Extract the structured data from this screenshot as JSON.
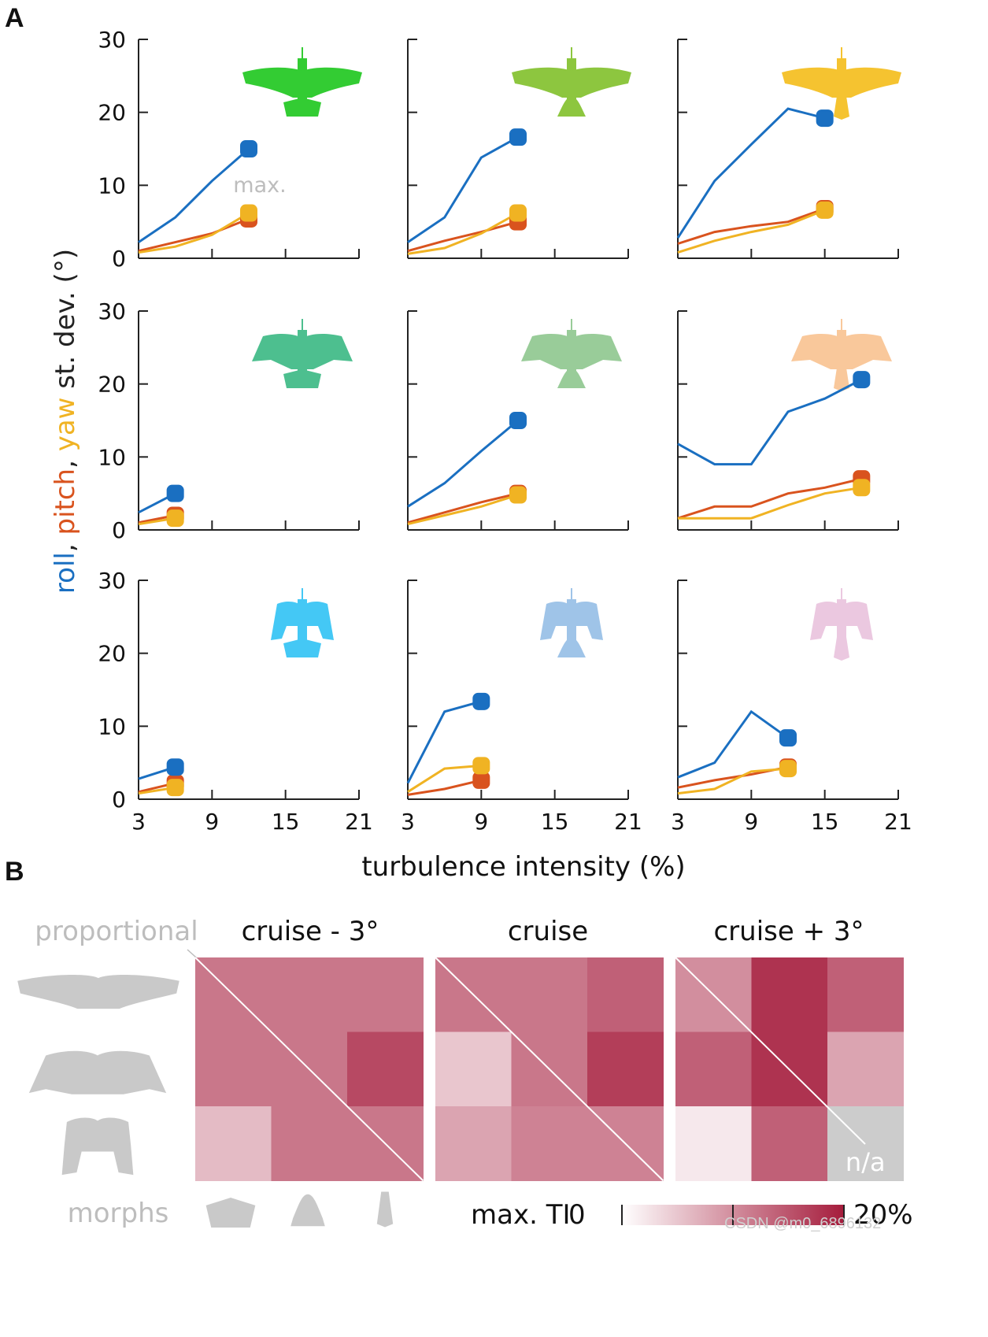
{
  "panel_letters": {
    "a": "A",
    "b": "B"
  },
  "panel_a": {
    "xlabel": "turbulence intensity (%)",
    "ylabel_parts": [
      {
        "text": "roll",
        "color": "#1a6fc1"
      },
      {
        "text": ", ",
        "color": "#222222"
      },
      {
        "text": "pitch",
        "color": "#d9531e"
      },
      {
        "text": ", ",
        "color": "#222222"
      },
      {
        "text": "yaw",
        "color": "#f0b323"
      },
      {
        "text": "  st. dev. (°)",
        "color": "#222222"
      }
    ],
    "annotation_max": "max.",
    "x_ticks": [
      "3",
      "9",
      "15",
      "21"
    ],
    "y_ticks": [
      "0",
      "10",
      "20",
      "30"
    ]
  },
  "panel_b": {
    "conditions": [
      "cruise - 3°",
      "cruise",
      "cruise + 3°"
    ],
    "proportional_label": "proportional",
    "morphs_label": "morphs",
    "na_label": "n/a",
    "colorbar": {
      "title": "max. TI",
      "min_label": "0",
      "max_label": "20%"
    }
  },
  "watermark": "CSDN @m0_6896132",
  "chart_data": [
    {
      "type": "line",
      "xlim": [
        3,
        21
      ],
      "ylim": [
        0,
        30
      ],
      "bird_color": "#33cc33",
      "series": [
        {
          "name": "roll",
          "color": "#1a6fc1",
          "x": [
            3,
            6,
            9,
            12
          ],
          "y": [
            2.2,
            5.6,
            10.6,
            15.0
          ]
        },
        {
          "name": "pitch",
          "color": "#d9531e",
          "x": [
            3,
            6,
            9,
            12
          ],
          "y": [
            1.0,
            2.2,
            3.4,
            5.4
          ]
        },
        {
          "name": "yaw",
          "color": "#f0b323",
          "x": [
            3,
            6,
            9,
            12
          ],
          "y": [
            0.8,
            1.6,
            3.2,
            6.2
          ]
        }
      ]
    },
    {
      "type": "line",
      "xlim": [
        3,
        21
      ],
      "ylim": [
        0,
        30
      ],
      "bird_color": "#8dc63f",
      "series": [
        {
          "name": "roll",
          "color": "#1a6fc1",
          "x": [
            3,
            6,
            9,
            12
          ],
          "y": [
            2.2,
            5.6,
            13.8,
            16.6
          ]
        },
        {
          "name": "pitch",
          "color": "#d9531e",
          "x": [
            3,
            6,
            9,
            12
          ],
          "y": [
            1.0,
            2.4,
            3.6,
            5.0
          ]
        },
        {
          "name": "yaw",
          "color": "#f0b323",
          "x": [
            3,
            6,
            9,
            12
          ],
          "y": [
            0.6,
            1.4,
            3.4,
            6.2
          ]
        }
      ]
    },
    {
      "type": "line",
      "xlim": [
        3,
        21
      ],
      "ylim": [
        0,
        30
      ],
      "bird_color": "#f5c330",
      "series": [
        {
          "name": "roll",
          "color": "#1a6fc1",
          "x": [
            3,
            6,
            9,
            12,
            15
          ],
          "y": [
            2.8,
            10.6,
            15.6,
            20.5,
            19.2
          ]
        },
        {
          "name": "pitch",
          "color": "#d9531e",
          "x": [
            3,
            6,
            9,
            12,
            15
          ],
          "y": [
            2.0,
            3.6,
            4.4,
            5.0,
            6.8
          ]
        },
        {
          "name": "yaw",
          "color": "#f0b323",
          "x": [
            3,
            6,
            9,
            12,
            15
          ],
          "y": [
            0.8,
            2.4,
            3.6,
            4.6,
            6.6
          ]
        }
      ]
    },
    {
      "type": "line",
      "xlim": [
        3,
        21
      ],
      "ylim": [
        0,
        30
      ],
      "bird_color": "#4dbf8f",
      "series": [
        {
          "name": "roll",
          "color": "#1a6fc1",
          "x": [
            3,
            6
          ],
          "y": [
            2.4,
            5.0
          ]
        },
        {
          "name": "pitch",
          "color": "#d9531e",
          "x": [
            3,
            6
          ],
          "y": [
            1.0,
            2.0
          ]
        },
        {
          "name": "yaw",
          "color": "#f0b323",
          "x": [
            3,
            6
          ],
          "y": [
            0.8,
            1.6
          ]
        }
      ]
    },
    {
      "type": "line",
      "xlim": [
        3,
        21
      ],
      "ylim": [
        0,
        30
      ],
      "bird_color": "#99cc99",
      "series": [
        {
          "name": "roll",
          "color": "#1a6fc1",
          "x": [
            3,
            6,
            9,
            12
          ],
          "y": [
            3.2,
            6.4,
            10.8,
            15.0
          ]
        },
        {
          "name": "pitch",
          "color": "#d9531e",
          "x": [
            3,
            6,
            9,
            12
          ],
          "y": [
            1.0,
            2.4,
            3.8,
            5.0
          ]
        },
        {
          "name": "yaw",
          "color": "#f0b323",
          "x": [
            3,
            6,
            9,
            12
          ],
          "y": [
            0.8,
            2.0,
            3.2,
            4.8
          ]
        }
      ]
    },
    {
      "type": "line",
      "xlim": [
        3,
        21
      ],
      "ylim": [
        0,
        30
      ],
      "bird_color": "#f9c89b",
      "series": [
        {
          "name": "roll",
          "color": "#1a6fc1",
          "x": [
            3,
            6,
            9,
            12,
            15,
            18
          ],
          "y": [
            11.8,
            9.0,
            9.0,
            16.2,
            18.0,
            20.6
          ]
        },
        {
          "name": "pitch",
          "color": "#d9531e",
          "x": [
            3,
            6,
            9,
            12,
            15,
            18
          ],
          "y": [
            1.6,
            3.2,
            3.2,
            5.0,
            5.8,
            7.0
          ]
        },
        {
          "name": "yaw",
          "color": "#f0b323",
          "x": [
            3,
            6,
            9,
            12,
            15,
            18
          ],
          "y": [
            1.6,
            1.6,
            1.6,
            3.4,
            5.0,
            5.8
          ]
        }
      ]
    },
    {
      "type": "line",
      "xlim": [
        3,
        21
      ],
      "ylim": [
        0,
        30
      ],
      "bird_color": "#44c8f5",
      "series": [
        {
          "name": "roll",
          "color": "#1a6fc1",
          "x": [
            3,
            6
          ],
          "y": [
            2.8,
            4.4
          ]
        },
        {
          "name": "pitch",
          "color": "#d9531e",
          "x": [
            3,
            6
          ],
          "y": [
            1.0,
            2.2
          ]
        },
        {
          "name": "yaw",
          "color": "#f0b323",
          "x": [
            3,
            6
          ],
          "y": [
            0.8,
            1.6
          ]
        }
      ]
    },
    {
      "type": "line",
      "xlim": [
        3,
        21
      ],
      "ylim": [
        0,
        30
      ],
      "bird_color": "#9fc4e8",
      "series": [
        {
          "name": "roll",
          "color": "#1a6fc1",
          "x": [
            3,
            6,
            9
          ],
          "y": [
            2.2,
            12.0,
            13.4
          ]
        },
        {
          "name": "pitch",
          "color": "#d9531e",
          "x": [
            3,
            6,
            9
          ],
          "y": [
            0.6,
            1.4,
            2.6
          ]
        },
        {
          "name": "yaw",
          "color": "#f0b323",
          "x": [
            3,
            6,
            9
          ],
          "y": [
            1.0,
            4.2,
            4.6
          ]
        }
      ]
    },
    {
      "type": "line",
      "xlim": [
        3,
        21
      ],
      "ylim": [
        0,
        30
      ],
      "bird_color": "#ebc8e0",
      "series": [
        {
          "name": "roll",
          "color": "#1a6fc1",
          "x": [
            3,
            6,
            9,
            12
          ],
          "y": [
            3.0,
            5.0,
            12.0,
            8.4
          ]
        },
        {
          "name": "pitch",
          "color": "#d9531e",
          "x": [
            3,
            6,
            9,
            12
          ],
          "y": [
            1.6,
            2.6,
            3.4,
            4.4
          ]
        },
        {
          "name": "yaw",
          "color": "#f0b323",
          "x": [
            3,
            6,
            9,
            12
          ],
          "y": [
            0.8,
            1.4,
            3.8,
            4.2
          ]
        }
      ]
    },
    {
      "type": "heatmap",
      "title": "cruise - 3°",
      "range": [
        0,
        20
      ],
      "values": [
        [
          12,
          12,
          12
        ],
        [
          12,
          12,
          16
        ],
        [
          6,
          12,
          12
        ]
      ]
    },
    {
      "type": "heatmap",
      "title": "cruise",
      "range": [
        0,
        20
      ],
      "values": [
        [
          12,
          12,
          14
        ],
        [
          5,
          12,
          17
        ],
        [
          8,
          11,
          11
        ]
      ]
    },
    {
      "type": "heatmap",
      "title": "cruise + 3°",
      "range": [
        0,
        20
      ],
      "values": [
        [
          10,
          18,
          14
        ],
        [
          14,
          18,
          8
        ],
        [
          2,
          14,
          null
        ]
      ]
    }
  ]
}
